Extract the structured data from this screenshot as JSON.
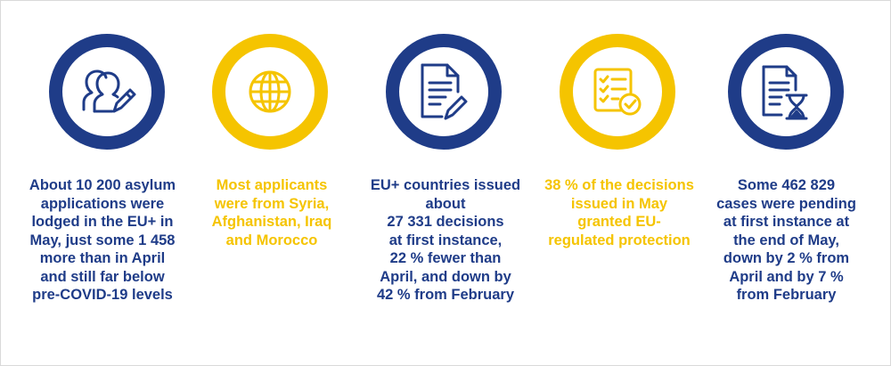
{
  "colors": {
    "blue": "#1f3c88",
    "yellow": "#f5c400"
  },
  "items": [
    {
      "icon": "users-edit-icon",
      "color": "blue",
      "text": "About 10 200 asylum\napplications were\nlodged in the EU+ in\nMay, just some 1 458\nmore than in April\nand still far below\npre-COVID-19 levels"
    },
    {
      "icon": "globe-icon",
      "color": "yellow",
      "text": "Most applicants\nwere from Syria,\nAfghanistan, Iraq\nand Morocco"
    },
    {
      "icon": "document-edit-icon",
      "color": "blue",
      "text": "EU+ countries issued\nabout\n27 331 decisions\nat first instance,\n22 % fewer than\nApril, and down by\n42 % from February"
    },
    {
      "icon": "checklist-icon",
      "color": "yellow",
      "text": "38 % of the decisions\nissued in May\ngranted EU-\nregulated protection"
    },
    {
      "icon": "document-hourglass-icon",
      "color": "blue",
      "text": "Some 462 829\ncases were pending\nat first instance at\nthe end of May,\ndown by 2 % from\nApril and by 7 %\nfrom February"
    }
  ]
}
